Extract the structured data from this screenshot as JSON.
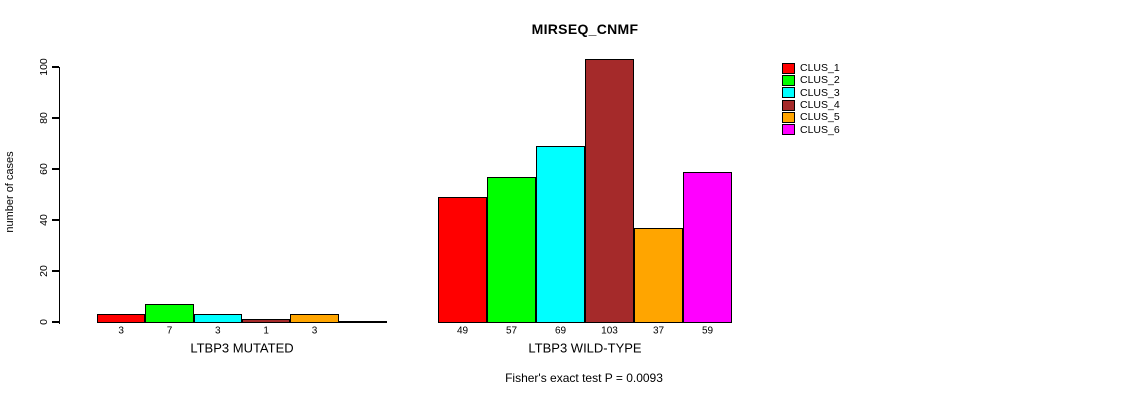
{
  "chart_data": {
    "type": "bar",
    "title": "MIRSEQ_CNMF",
    "ylabel": "number of cases",
    "ylim": [
      0,
      100
    ],
    "yticks": [
      0,
      20,
      40,
      60,
      80,
      100
    ],
    "grid": false,
    "legend_position": "right",
    "categories": [
      "CLUS_1",
      "CLUS_2",
      "CLUS_3",
      "CLUS_4",
      "CLUS_5",
      "CLUS_6"
    ],
    "colors": [
      "#FF0000",
      "#00FF00",
      "#00FFFF",
      "#A52A2A",
      "#FFA500",
      "#FF00FF"
    ],
    "groups": [
      {
        "label": "LTBP3 MUTATED",
        "values": [
          3,
          7,
          3,
          1,
          3,
          0
        ],
        "bar_labels": [
          "3",
          "7",
          "3",
          "1",
          "3",
          ""
        ]
      },
      {
        "label": "LTBP3 WILD-TYPE",
        "values": [
          49,
          57,
          69,
          103,
          37,
          59
        ],
        "bar_labels": [
          "49",
          "57",
          "69",
          "103",
          "37",
          "59"
        ]
      }
    ],
    "annotation": "Fisher's exact test P = 0.0093"
  }
}
